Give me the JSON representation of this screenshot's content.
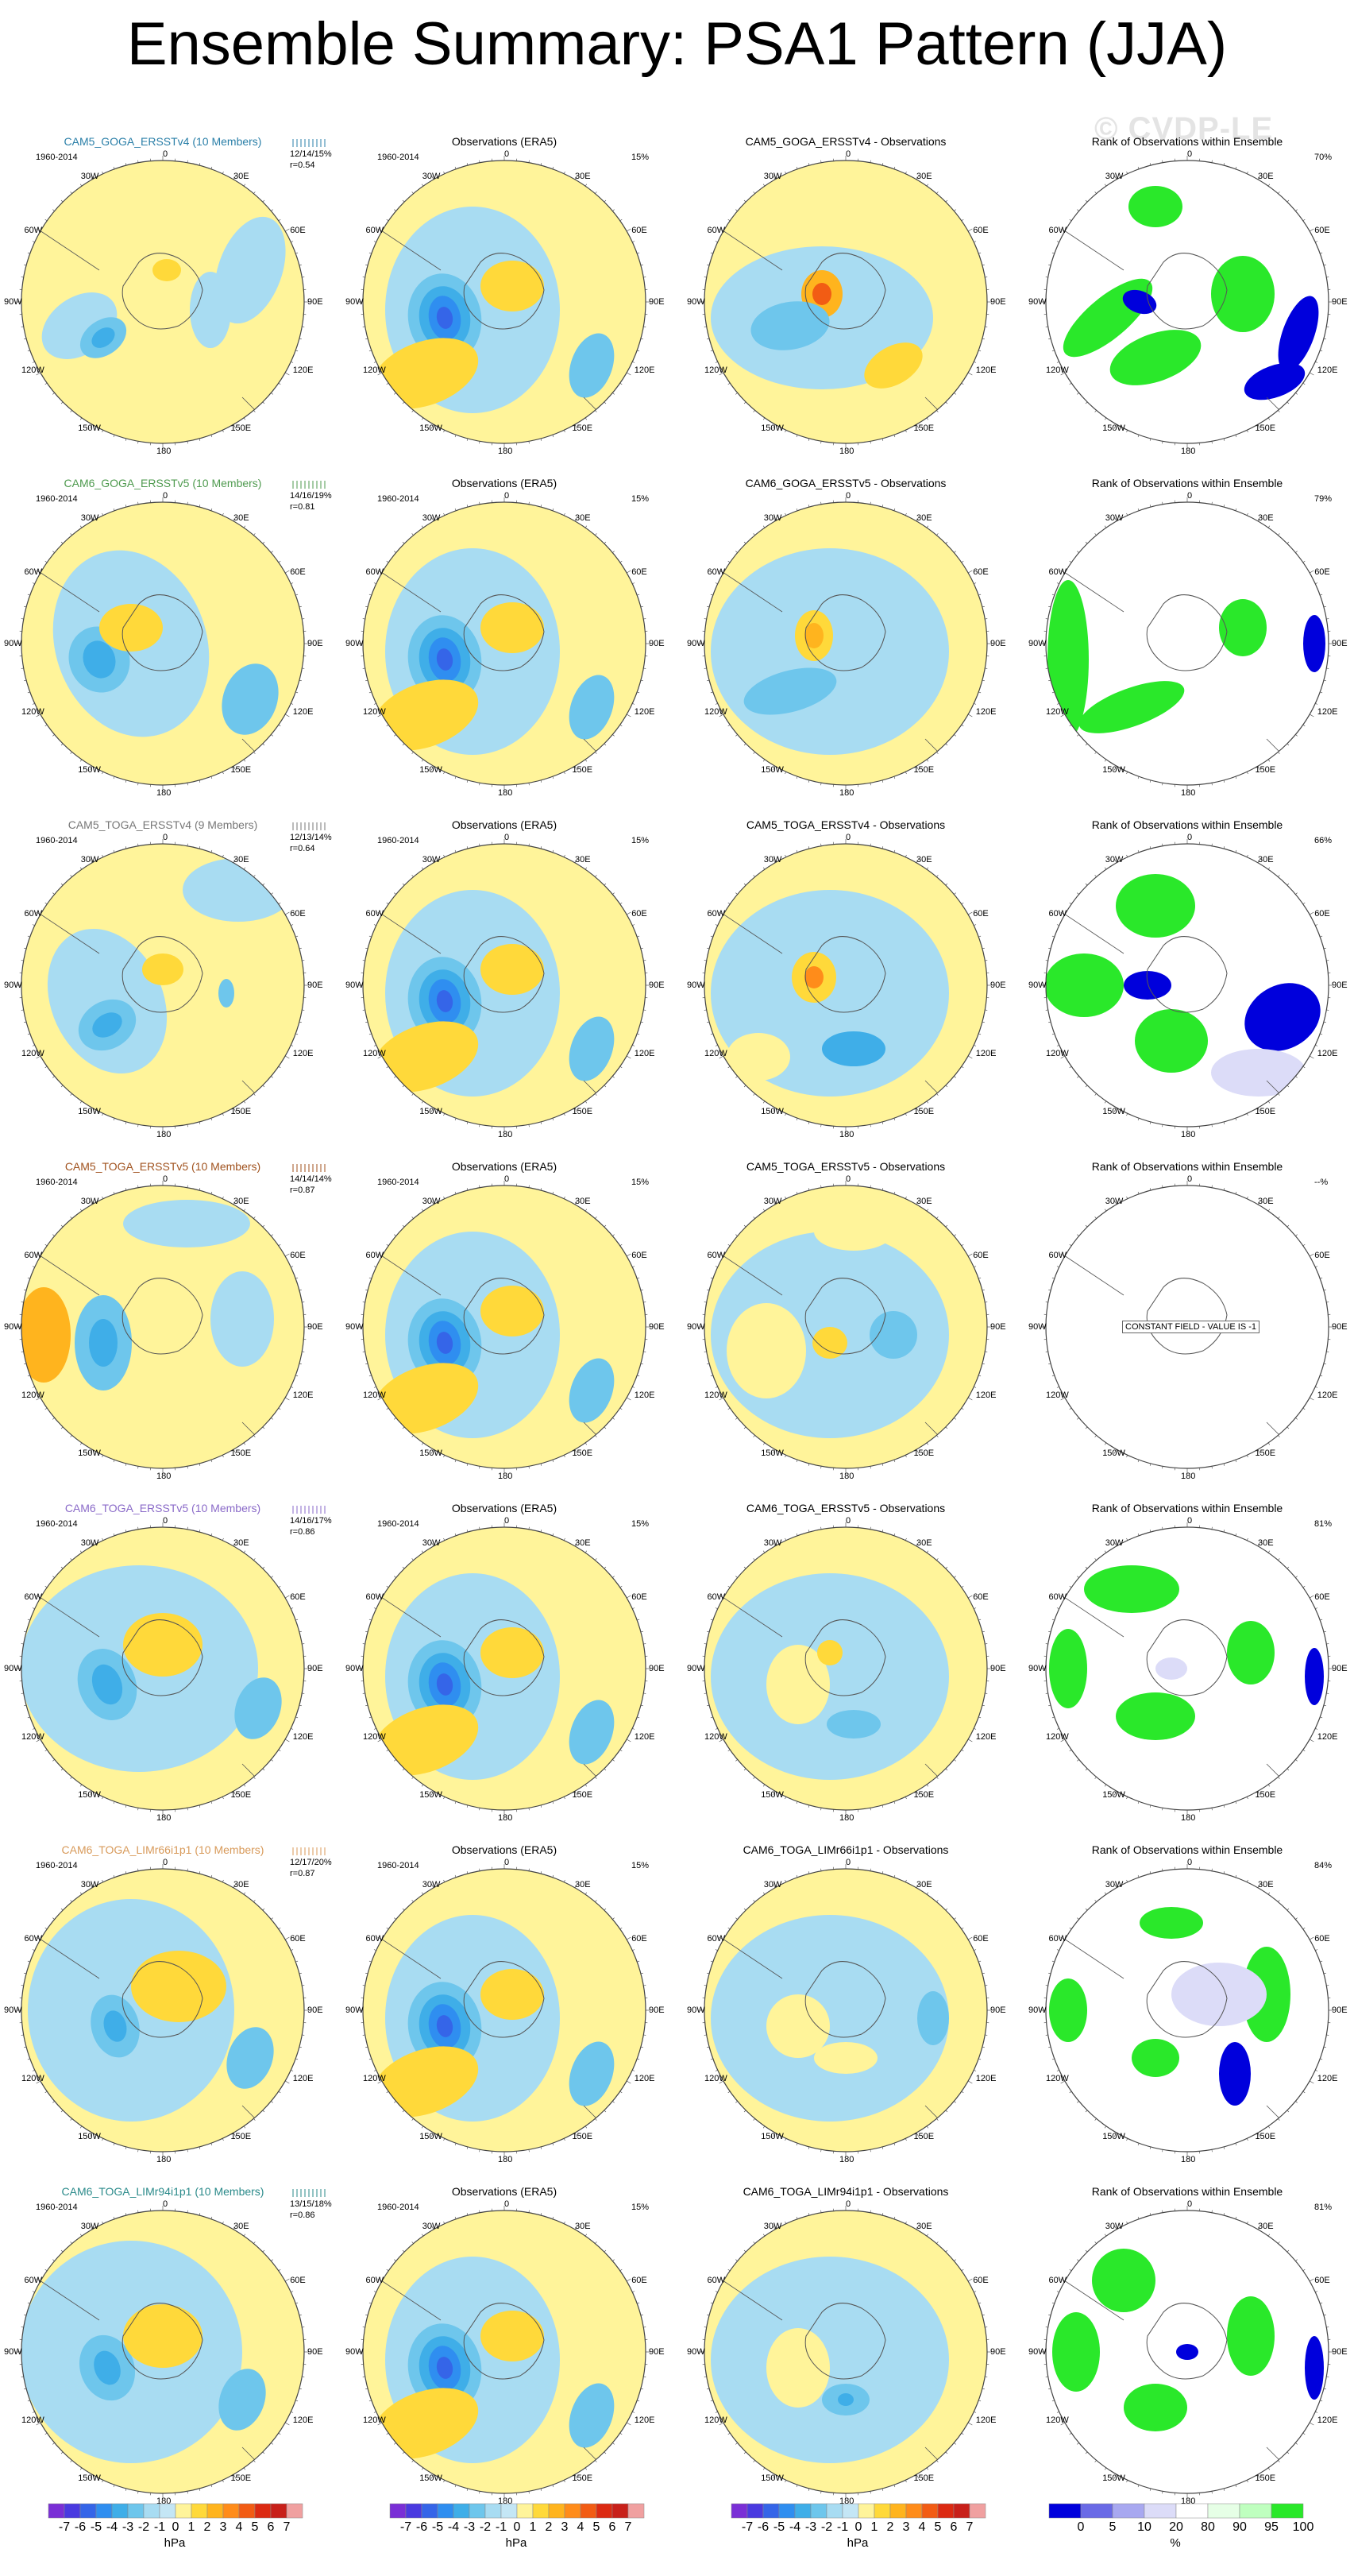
{
  "title": "Ensemble Summary: PSA1 Pattern (JJA)",
  "watermark": "© CVDP-LE",
  "period": "1960-2014",
  "map_labels": {
    "top": "0",
    "tl": "30W",
    "tr": "30E",
    "ul": "60W",
    "ur": "60E",
    "l": "90W",
    "r": "90E",
    "ll": "120W",
    "lr": "120E",
    "bl": "150W",
    "br": "150E",
    "bottom": "180"
  },
  "obs_title": "Observations (ERA5)",
  "obs_pct": "15%",
  "rank_title": "Rank of Observations within Ensemble",
  "constant_field": "CONSTANT FIELD - VALUE IS -1",
  "rows": [
    {
      "ens_title": "CAM5_GOGA_ERSSTv4 (10 Members)",
      "ens_color": "#2a7fa8",
      "pcts": "12/14/15%",
      "corr": "r=0.54",
      "diff_title": "CAM5_GOGA_ERSSTv4 - Observations",
      "rank_pct": "70%",
      "variant": 0
    },
    {
      "ens_title": "CAM6_GOGA_ERSSTv5 (10 Members)",
      "ens_color": "#4e9a4e",
      "pcts": "14/16/19%",
      "corr": "r=0.81",
      "diff_title": "CAM6_GOGA_ERSSTv5 - Observations",
      "rank_pct": "79%",
      "variant": 1
    },
    {
      "ens_title": "CAM5_TOGA_ERSSTv4 (9 Members)",
      "ens_color": "#777777",
      "pcts": "12/13/14%",
      "corr": "r=0.64",
      "diff_title": "CAM5_TOGA_ERSSTv4 - Observations",
      "rank_pct": "66%",
      "variant": 2
    },
    {
      "ens_title": "CAM5_TOGA_ERSSTv5 (10 Members)",
      "ens_color": "#a0521e",
      "pcts": "14/14/14%",
      "corr": "r=0.87",
      "diff_title": "CAM5_TOGA_ERSSTv5 - Observations",
      "rank_pct": "--%",
      "variant": 3
    },
    {
      "ens_title": "CAM6_TOGA_ERSSTv5 (10 Members)",
      "ens_color": "#8a6ac8",
      "pcts": "14/16/17%",
      "corr": "r=0.86",
      "diff_title": "CAM6_TOGA_ERSSTv5 - Observations",
      "rank_pct": "81%",
      "variant": 4
    },
    {
      "ens_title": "CAM6_TOGA_LIMr66i1p1 (10 Members)",
      "ens_color": "#d89a5a",
      "pcts": "12/17/20%",
      "corr": "r=0.87",
      "diff_title": "CAM6_TOGA_LIMr66i1p1 - Observations",
      "rank_pct": "84%",
      "variant": 5
    },
    {
      "ens_title": "CAM6_TOGA_LIMr94i1p1 (10 Members)",
      "ens_color": "#2a8a8a",
      "pcts": "13/15/18%",
      "corr": "r=0.86",
      "diff_title": "CAM6_TOGA_LIMr94i1p1 - Observations",
      "rank_pct": "81%",
      "variant": 6
    }
  ],
  "colorbar_hpa": {
    "unit": "hPa",
    "ticks": [
      "-7",
      "-6",
      "-5",
      "-4",
      "-3",
      "-2",
      "-1",
      "0",
      "1",
      "2",
      "3",
      "4",
      "5",
      "6",
      "7"
    ],
    "colors": [
      "#7a2fd6",
      "#4a3ae0",
      "#3565e8",
      "#2f8ef0",
      "#3faee8",
      "#6ec6ec",
      "#a8dcf2",
      "#c4e6f5",
      "#fff49a",
      "#ffd93a",
      "#ffb41e",
      "#ff8c1a",
      "#f25c14",
      "#dc2a12",
      "#c8201a",
      "#f0a0a0"
    ]
  },
  "colorbar_pct": {
    "unit": "%",
    "ticks": [
      "0",
      "5",
      "10",
      "20",
      "80",
      "90",
      "95",
      "100"
    ],
    "colors": [
      "#0000dc",
      "#6a6ae6",
      "#a8a8f0",
      "#dcdcf8",
      "#ffffff",
      "#e6ffe6",
      "#bfffbf",
      "#2ae82a"
    ]
  }
}
